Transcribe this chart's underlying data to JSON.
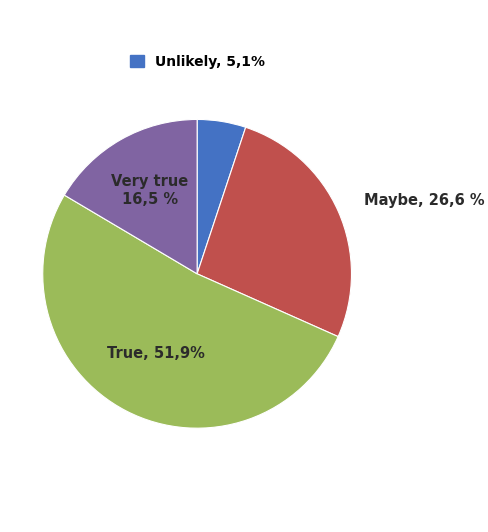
{
  "values": [
    5.1,
    26.6,
    51.9,
    16.5
  ],
  "colors": [
    "#4472C4",
    "#C0504D",
    "#9BBB59",
    "#8064A2"
  ],
  "legend_label": "Unlikely, 5,1%",
  "legend_color": "#4472C4",
  "startangle": 90,
  "counterclock": false,
  "background_color": "#FFFFFF",
  "label_fontsize": 10.5,
  "legend_fontsize": 10,
  "label_positions": [
    {
      "label": "",
      "r": 0.0,
      "ha": "center",
      "va": "center"
    },
    {
      "label": "Maybe, 26,6 %",
      "r": 1.18,
      "ha": "left",
      "va": "center"
    },
    {
      "label": "True, 51,9%",
      "r": 0.58,
      "ha": "center",
      "va": "center"
    },
    {
      "label": "Very true\n16,5 %",
      "r": 0.62,
      "ha": "center",
      "va": "center"
    }
  ]
}
